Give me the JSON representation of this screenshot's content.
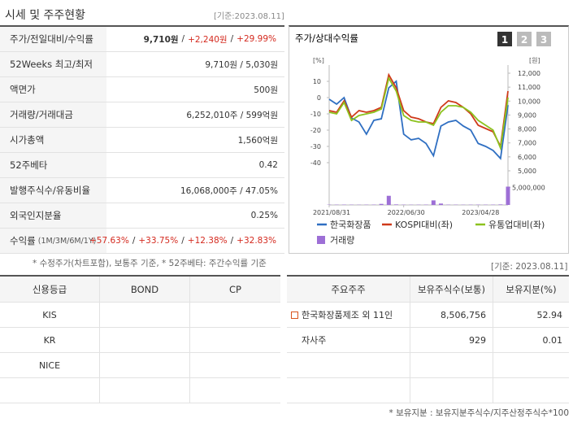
{
  "header": {
    "title": "시세 및 주주현황",
    "date": "[기준:2023.08.11]"
  },
  "quote_table": {
    "rows": [
      {
        "label": "주가/전일대비/수익률",
        "value": [
          "9,710원",
          "/",
          "+2,240원",
          "/",
          "+29.99%"
        ]
      },
      {
        "label": "52Weeks 최고/최저",
        "value": [
          "9,710원 / 5,030원"
        ]
      },
      {
        "label": "액면가",
        "value": [
          "500원"
        ]
      },
      {
        "label": "거래량/거래대금",
        "value": [
          "6,252,010주 / 599억원"
        ]
      },
      {
        "label": "시가총액",
        "value": [
          "1,560억원"
        ]
      },
      {
        "label": "52주베타",
        "value": [
          "0.42"
        ]
      },
      {
        "label": "발행주식수/유동비율",
        "value": [
          "16,068,000주 / 47.05%"
        ]
      },
      {
        "label": "외국인지분율",
        "value": [
          "0.25%"
        ]
      },
      {
        "label": "수익률",
        "sub": "(1M/3M/6M/1Y)",
        "value": [
          "+57.63%",
          "/",
          "+33.75%",
          "/",
          "+12.38%",
          "/",
          "+32.83%"
        ]
      }
    ]
  },
  "chart_panel": {
    "title": "주가/상대수익률",
    "tabs": [
      "1",
      "2",
      "3"
    ]
  },
  "chart_data": {
    "type": "line",
    "y_unit": "[%]",
    "y2_unit": "[원]",
    "categories": [
      "2021/08/31",
      null,
      null,
      null,
      null,
      null,
      null,
      null,
      null,
      null,
      "2022/06/30",
      null,
      null,
      null,
      null,
      null,
      null,
      null,
      null,
      null,
      "2023/04/28",
      null,
      null,
      null,
      null
    ],
    "ylim": [
      -45,
      15
    ],
    "yticks": [
      10,
      0,
      -10,
      -20,
      -30,
      -40
    ],
    "y2lim": [
      5000,
      12000
    ],
    "y2ticks": [
      {
        "value": 5000,
        "label": "5,000"
      },
      {
        "value": 6000,
        "label": "6,000"
      },
      {
        "value": 7000,
        "label": "7,000"
      },
      {
        "value": 8000,
        "label": "8,000"
      },
      {
        "value": 9000,
        "label": "9,000"
      },
      {
        "value": 10000,
        "label": "10,000"
      },
      {
        "value": 11000,
        "label": "11,000"
      },
      {
        "value": 12000,
        "label": "12,000"
      }
    ],
    "series": [
      {
        "name": "한국화장품",
        "color": "#2f6fc2",
        "axis": "y2",
        "values": [
          10130,
          9780,
          10250,
          8790,
          8500,
          7630,
          8620,
          8730,
          10950,
          11420,
          7630,
          7220,
          7330,
          6960,
          6080,
          8210,
          8500,
          8620,
          8210,
          7920,
          6960,
          6750,
          6460,
          5880,
          9710
        ]
      },
      {
        "name": "KOSPI대비(좌)",
        "color": "#cf3a1a",
        "values": [
          -8,
          -9,
          -2,
          -12,
          -8,
          -9,
          -8,
          -6,
          14,
          6,
          -8,
          -12,
          -13,
          -15,
          -16,
          -6,
          -2,
          -3,
          -6,
          -10,
          -17,
          -19,
          -21,
          -30,
          4
        ]
      },
      {
        "name": "유통업대비(좌)",
        "color": "#8cc21e",
        "values": [
          -9,
          -10,
          -3,
          -14,
          -11,
          -10,
          -9,
          -7,
          12,
          4,
          -11,
          -14,
          -15,
          -15,
          -17,
          -9,
          -5,
          -5,
          -6,
          -9,
          -14,
          -17,
          -20,
          -31,
          0
        ]
      }
    ],
    "volume": {
      "name": "거래량",
      "color": "#9d6fd6",
      "values": [
        80000,
        80000,
        90000,
        80000,
        70000,
        80000,
        90000,
        300000,
        2600000,
        150000,
        80000,
        70000,
        80000,
        90000,
        1300000,
        400000,
        90000,
        80000,
        70000,
        80000,
        90000,
        80000,
        90000,
        150000,
        5200000
      ]
    },
    "vlim": [
      0,
      6000000
    ],
    "vticks": [
      {
        "value": 5000000,
        "label": "5,000,000"
      }
    ]
  },
  "notes": {
    "left": "* 수정주가(차트포함), 보통주 기준, * 52주베타: 주간수익률 기준",
    "right": "[기준: 2023.08.11]"
  },
  "credit_table": {
    "headers": [
      "신용등급",
      "BOND",
      "CP"
    ],
    "rows": [
      [
        "KIS"
      ],
      [
        "KR"
      ],
      [
        "NICE"
      ]
    ]
  },
  "holder_table": {
    "headers": [
      "주요주주",
      "보유주식수(보통)",
      "보유지분(%)"
    ],
    "rows": [
      [
        "한국화장품제조 외 11인",
        "8,506,756",
        "52.94"
      ],
      [
        "자사주",
        "929",
        "0.01"
      ]
    ]
  },
  "footer": "* 보유지분 : 보유지분주식수/지주산정주식수*100"
}
